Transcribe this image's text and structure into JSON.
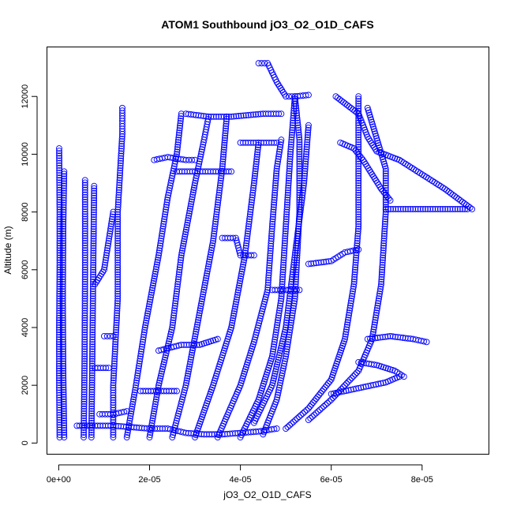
{
  "chart_data": {
    "type": "scatter",
    "title": "ATOM1 Southbound jO3_O2_O1D_CAFS",
    "xlabel": "jO3_O2_O1D_CAFS",
    "ylabel": "Altitude (m)",
    "xlim": [
      -2.5e-06,
      9.48e-05
    ],
    "ylim": [
      -400,
      13700
    ],
    "x_ticks": [
      {
        "value": 0,
        "label": "0e+00"
      },
      {
        "value": 2e-05,
        "label": "2e-05"
      },
      {
        "value": 4e-05,
        "label": "4e-05"
      },
      {
        "value": 6e-05,
        "label": "6e-05"
      },
      {
        "value": 8e-05,
        "label": "8e-05"
      }
    ],
    "y_ticks": [
      {
        "value": 0,
        "label": "0"
      },
      {
        "value": 2000,
        "label": "2000"
      },
      {
        "value": 4000,
        "label": "4000"
      },
      {
        "value": 6000,
        "label": "6000"
      },
      {
        "value": 8000,
        "label": "8000"
      },
      {
        "value": 10000,
        "label": "10000"
      },
      {
        "value": 12000,
        "label": "12000"
      }
    ],
    "marker": "open-circle",
    "color": "#0000ff",
    "grid": false,
    "legend": "none",
    "series": [
      {
        "points": [
          [
            2e-07,
            200
          ],
          [
            1e-07,
            2000
          ],
          [
            1e-07,
            4000
          ],
          [
            2e-07,
            6000
          ],
          [
            2e-07,
            8000
          ],
          [
            1e-07,
            10200
          ]
        ]
      },
      {
        "points": [
          [
            1.2e-06,
            200
          ],
          [
            1e-06,
            2500
          ],
          [
            9e-07,
            5000
          ],
          [
            1e-06,
            7500
          ],
          [
            1.2e-06,
            9400
          ]
        ]
      },
      {
        "points": [
          [
            5.5e-06,
            200
          ],
          [
            5.7e-06,
            3000
          ],
          [
            5.8e-06,
            6000
          ],
          [
            5.8e-06,
            9100
          ]
        ]
      },
      {
        "points": [
          [
            7.2e-06,
            200
          ],
          [
            7.4e-06,
            3000
          ],
          [
            7.6e-06,
            6000
          ],
          [
            7.8e-06,
            8900
          ]
        ]
      },
      {
        "points": [
          [
            1.2e-05,
            200
          ],
          [
            1.2e-05,
            2000
          ],
          [
            1.3e-05,
            5000
          ],
          [
            1.3e-05,
            8000
          ],
          [
            1.4e-05,
            10700
          ],
          [
            1.4e-05,
            11600
          ]
        ]
      },
      {
        "points": [
          [
            1.5e-05,
            200
          ],
          [
            1.7e-05,
            2000
          ],
          [
            1.9e-05,
            4000
          ],
          [
            2.2e-05,
            6500
          ],
          [
            2.4e-05,
            8500
          ],
          [
            2.6e-05,
            10000
          ],
          [
            2.7e-05,
            11400
          ]
        ]
      },
      {
        "points": [
          [
            2e-05,
            200
          ],
          [
            2.2e-05,
            2000
          ],
          [
            2.5e-05,
            4000
          ],
          [
            2.7e-05,
            6500
          ],
          [
            3e-05,
            9000
          ],
          [
            3.2e-05,
            10500
          ],
          [
            3.3e-05,
            11300
          ]
        ]
      },
      {
        "points": [
          [
            2.5e-05,
            200
          ],
          [
            2.8e-05,
            2000
          ],
          [
            3.1e-05,
            4500
          ],
          [
            3.4e-05,
            7000
          ],
          [
            3.6e-05,
            9500
          ],
          [
            3.7e-05,
            11300
          ]
        ]
      },
      {
        "points": [
          [
            3e-05,
            200
          ],
          [
            3.4e-05,
            2000
          ],
          [
            3.8e-05,
            4000
          ],
          [
            4.1e-05,
            6500
          ],
          [
            4.3e-05,
            9000
          ],
          [
            4.4e-05,
            10400
          ]
        ]
      },
      {
        "points": [
          [
            3.5e-05,
            200
          ],
          [
            4e-05,
            2000
          ],
          [
            4.3e-05,
            3500
          ],
          [
            4.6e-05,
            5300
          ],
          [
            4.7e-05,
            7500
          ],
          [
            4.8e-05,
            9500
          ],
          [
            4.9e-05,
            10500
          ]
        ]
      },
      {
        "points": [
          [
            4e-05,
            200
          ],
          [
            4.4e-05,
            1500
          ],
          [
            4.7e-05,
            3000
          ],
          [
            4.9e-05,
            5000
          ],
          [
            5e-05,
            7500
          ],
          [
            5.1e-05,
            10000
          ],
          [
            5.2e-05,
            12000
          ]
        ]
      },
      {
        "points": [
          [
            4.3e-05,
            700
          ],
          [
            4.7e-05,
            2000
          ],
          [
            5e-05,
            4000
          ],
          [
            5.2e-05,
            6500
          ],
          [
            5.4e-05,
            9000
          ],
          [
            5.5e-05,
            11000
          ]
        ]
      },
      {
        "points": [
          [
            4.5e-05,
            300
          ],
          [
            4.8e-05,
            1500
          ],
          [
            5e-05,
            3000
          ],
          [
            5.2e-05,
            5000
          ],
          [
            5.3e-05,
            8000
          ],
          [
            5.3e-05,
            10500
          ],
          [
            5.2e-05,
            12000
          ]
        ]
      },
      {
        "points": [
          [
            5e-05,
            500
          ],
          [
            5.5e-05,
            1200
          ],
          [
            6e-05,
            2200
          ],
          [
            6.3e-05,
            3600
          ],
          [
            6.5e-05,
            5500
          ],
          [
            6.6e-05,
            7500
          ],
          [
            6.6e-05,
            9500
          ],
          [
            6.6e-05,
            12000
          ]
        ]
      },
      {
        "points": [
          [
            5.5e-05,
            800
          ],
          [
            6e-05,
            1500
          ],
          [
            6.6e-05,
            2500
          ],
          [
            6.9e-05,
            3600
          ],
          [
            7.1e-05,
            5500
          ],
          [
            7.2e-05,
            8000
          ],
          [
            7.2e-05,
            9500
          ],
          [
            6.8e-05,
            11600
          ]
        ]
      },
      {
        "points": [
          [
            4.4e-05,
            13150
          ],
          [
            4.6e-05,
            13150
          ],
          [
            4.8e-05,
            12500
          ],
          [
            5e-05,
            12000
          ],
          [
            5.2e-05,
            12000
          ],
          [
            5.5e-05,
            12050
          ]
        ]
      },
      {
        "points": [
          [
            6.1e-05,
            12000
          ],
          [
            6.6e-05,
            11400
          ],
          [
            6.8e-05,
            10600
          ],
          [
            7e-05,
            10100
          ],
          [
            7.5e-05,
            9800
          ],
          [
            8e-05,
            9300
          ],
          [
            8.5e-05,
            8800
          ],
          [
            9.1e-05,
            8100
          ]
        ]
      },
      {
        "points": [
          [
            7.2e-05,
            8100
          ],
          [
            7.8e-05,
            8100
          ],
          [
            8.4e-05,
            8100
          ],
          [
            9e-05,
            8100
          ]
        ]
      },
      {
        "points": [
          [
            6.8e-05,
            3600
          ],
          [
            7.3e-05,
            3700
          ],
          [
            7.8e-05,
            3600
          ],
          [
            8.1e-05,
            3500
          ]
        ]
      },
      {
        "points": [
          [
            6.6e-05,
            2800
          ],
          [
            7e-05,
            2700
          ],
          [
            7.4e-05,
            2500
          ],
          [
            7.6e-05,
            2300
          ]
        ]
      },
      {
        "points": [
          [
            6e-05,
            1700
          ],
          [
            6.6e-05,
            1900
          ],
          [
            7.2e-05,
            2100
          ],
          [
            7.5e-05,
            2300
          ]
        ]
      },
      {
        "points": [
          [
            5.5e-05,
            6200
          ],
          [
            6e-05,
            6300
          ],
          [
            6.3e-05,
            6600
          ],
          [
            6.6e-05,
            6700
          ]
        ]
      },
      {
        "points": [
          [
            6.2e-05,
            10400
          ],
          [
            6.5e-05,
            10200
          ],
          [
            6.7e-05,
            9800
          ],
          [
            6.9e-05,
            9300
          ],
          [
            7.1e-05,
            8800
          ],
          [
            7.3e-05,
            8400
          ]
        ]
      },
      {
        "points": [
          [
            2.6e-05,
            9400
          ],
          [
            3e-05,
            9400
          ],
          [
            3.4e-05,
            9400
          ],
          [
            3.8e-05,
            9400
          ]
        ]
      },
      {
        "points": [
          [
            2.8e-05,
            11400
          ],
          [
            3.3e-05,
            11300
          ],
          [
            3.8e-05,
            11300
          ],
          [
            4.5e-05,
            11400
          ],
          [
            4.9e-05,
            11400
          ]
        ]
      },
      {
        "points": [
          [
            2.1e-05,
            9800
          ],
          [
            2.4e-05,
            9900
          ],
          [
            2.8e-05,
            9800
          ],
          [
            3e-05,
            9800
          ]
        ]
      },
      {
        "points": [
          [
            4e-05,
            10400
          ],
          [
            4.4e-05,
            10400
          ],
          [
            4.8e-05,
            10400
          ]
        ]
      },
      {
        "points": [
          [
            4.7e-05,
            5300
          ],
          [
            5e-05,
            5300
          ],
          [
            5.3e-05,
            5300
          ]
        ]
      },
      {
        "points": [
          [
            3.6e-05,
            7100
          ],
          [
            3.9e-05,
            7100
          ],
          [
            4e-05,
            6500
          ],
          [
            4.3e-05,
            6500
          ]
        ]
      },
      {
        "points": [
          [
            2.2e-05,
            3200
          ],
          [
            2.7e-05,
            3400
          ],
          [
            3.1e-05,
            3400
          ],
          [
            3.5e-05,
            3600
          ]
        ]
      },
      {
        "points": [
          [
            1.8e-05,
            1800
          ],
          [
            2.2e-05,
            1800
          ],
          [
            2.6e-05,
            1800
          ]
        ]
      },
      {
        "points": [
          [
            9e-06,
            1000
          ],
          [
            1.2e-05,
            1000
          ],
          [
            1.5e-05,
            1100
          ]
        ]
      },
      {
        "points": [
          [
            8e-06,
            2600
          ],
          [
            1.1e-05,
            2600
          ]
        ]
      },
      {
        "points": [
          [
            1e-05,
            3700
          ],
          [
            1.2e-05,
            3700
          ]
        ]
      },
      {
        "points": [
          [
            4e-06,
            600
          ],
          [
            8e-06,
            600
          ],
          [
            1.2e-05,
            600
          ],
          [
            1.6e-05,
            550
          ],
          [
            2e-05,
            500
          ],
          [
            2.4e-05,
            500
          ],
          [
            2.8e-05,
            350
          ],
          [
            3.2e-05,
            300
          ],
          [
            3.6e-05,
            300
          ],
          [
            4e-05,
            350
          ],
          [
            4.4e-05,
            400
          ],
          [
            4.8e-05,
            500
          ]
        ]
      },
      {
        "points": [
          [
            8e-06,
            5500
          ],
          [
            1e-05,
            6000
          ],
          [
            1.1e-05,
            7000
          ],
          [
            1.2e-05,
            8000
          ]
        ]
      }
    ]
  }
}
